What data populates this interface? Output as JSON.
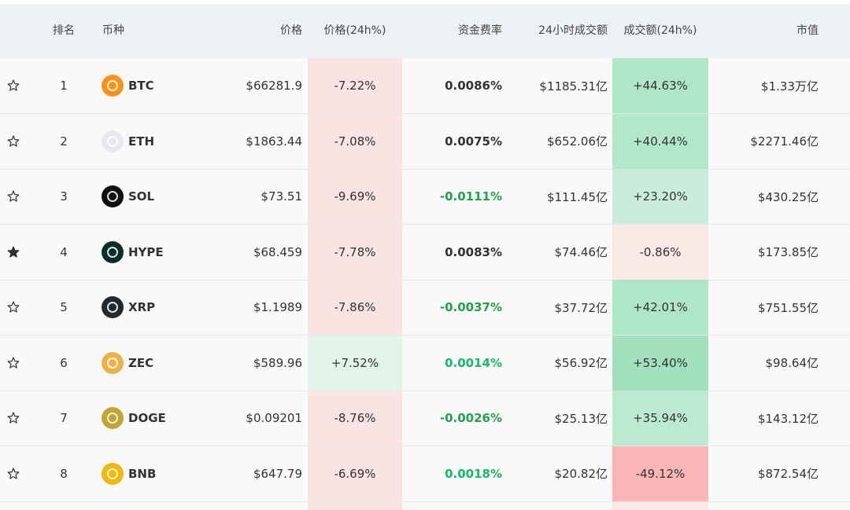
{
  "table": {
    "header": [
      "排名",
      "币种",
      "价格",
      "价格(24h%)",
      "资金费率",
      "24小时成交额",
      "成交额(24h%)",
      "市值"
    ],
    "rows": [
      {
        "favorite": false,
        "rank": 1,
        "symbol": "BTC",
        "icon_color": "#f7931a",
        "price": "$66281.9",
        "price_change": "-7.22%",
        "price_change_color": "#fae3e3",
        "funding_rate": "0.0086%",
        "funding_rate_color": "#333333",
        "volume": "$1185.31亿",
        "volume_change": "+44.63%",
        "volume_change_color": "#afe6c8",
        "market_cap": "$1.33万亿"
      },
      {
        "favorite": false,
        "rank": 2,
        "symbol": "ETH",
        "icon_color": "#e8e8ee",
        "price": "$1863.44",
        "price_change": "-7.08%",
        "price_change_color": "#fae3e3",
        "funding_rate": "0.0075%",
        "funding_rate_color": "#333333",
        "volume": "$652.06亿",
        "volume_change": "+40.44%",
        "volume_change_color": "#b3e7cb",
        "market_cap": "$2271.46亿"
      },
      {
        "favorite": false,
        "rank": 3,
        "symbol": "SOL",
        "icon_color": "#111111",
        "price": "$73.51",
        "price_change": "-9.69%",
        "price_change_color": "#fae3e3",
        "funding_rate": "-0.0111%",
        "funding_rate_color": "#22a14a",
        "volume": "$111.45亿",
        "volume_change": "+23.20%",
        "volume_change_color": "#c9eddb",
        "market_cap": "$430.25亿"
      },
      {
        "favorite": true,
        "rank": 4,
        "symbol": "HYPE",
        "icon_color": "#0b2e2a",
        "price": "$68.459",
        "price_change": "-7.78%",
        "price_change_color": "#fae3e3",
        "funding_rate": "0.0083%",
        "funding_rate_color": "#333333",
        "volume": "$74.46亿",
        "volume_change": "-0.86%",
        "volume_change_color": "#fbe9e8",
        "market_cap": "$173.85亿"
      },
      {
        "favorite": false,
        "rank": 5,
        "symbol": "XRP",
        "icon_color": "#23292f",
        "price": "$1.1989",
        "price_change": "-7.86%",
        "price_change_color": "#fae3e3",
        "funding_rate": "-0.0037%",
        "funding_rate_color": "#22a14a",
        "volume": "$37.72亿",
        "volume_change": "+42.01%",
        "volume_change_color": "#afe6c8",
        "market_cap": "$751.55亿"
      },
      {
        "favorite": false,
        "rank": 6,
        "symbol": "ZEC",
        "icon_color": "#ecb244",
        "price": "$589.96",
        "price_change": "+7.52%",
        "price_change_color": "#e2f4e9",
        "funding_rate": "0.0014%",
        "funding_rate_color": "#17b86a",
        "volume": "$56.92亿",
        "volume_change": "+53.40%",
        "volume_change_color": "#a1dfbd",
        "market_cap": "$98.64亿"
      },
      {
        "favorite": false,
        "rank": 7,
        "symbol": "DOGE",
        "icon_color": "#c2a633",
        "price": "$0.09201",
        "price_change": "-8.76%",
        "price_change_color": "#fae3e3",
        "funding_rate": "-0.0026%",
        "funding_rate_color": "#22a14a",
        "volume": "$25.13亿",
        "volume_change": "+35.94%",
        "volume_change_color": "#bce9d1",
        "market_cap": "$143.12亿"
      },
      {
        "favorite": false,
        "rank": 8,
        "symbol": "BNB",
        "icon_color": "#f0b90b",
        "price": "$647.79",
        "price_change": "-6.69%",
        "price_change_color": "#fae3e3",
        "funding_rate": "0.0018%",
        "funding_rate_color": "#17b86a",
        "volume": "$20.82亿",
        "volume_change": "-49.12%",
        "volume_change_color": "#f8b6b6",
        "market_cap": "$872.54亿"
      }
    ]
  }
}
